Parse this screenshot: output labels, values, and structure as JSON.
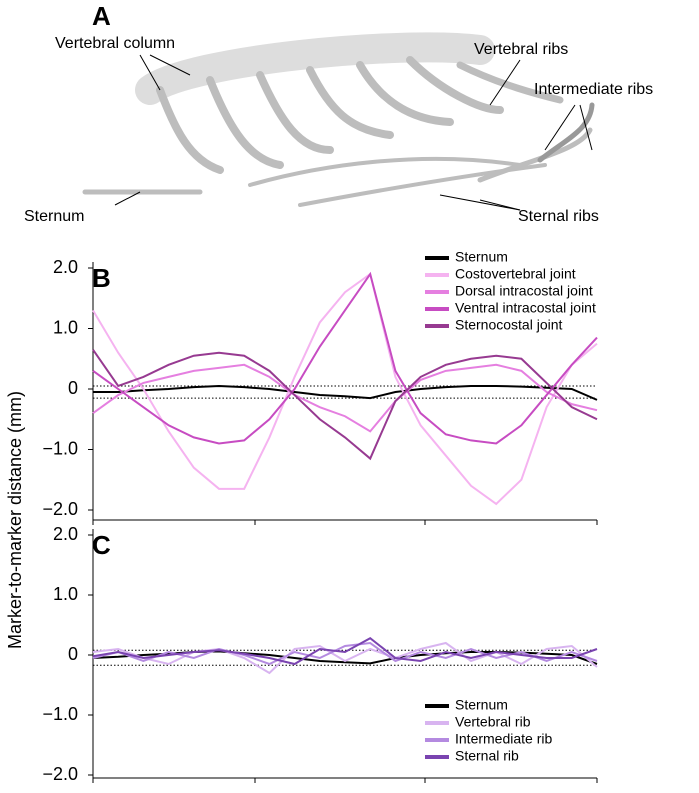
{
  "panel_a": {
    "label": "A",
    "annotations": [
      "Vertebral column",
      "Vertebral ribs",
      "Intermediate ribs",
      "Sternum",
      "Sternal ribs"
    ]
  },
  "chart_data": [
    {
      "type": "line",
      "label": "B",
      "ylabel": "Marker-to-marker distance (mm)",
      "ylim": [
        -2.0,
        2.0
      ],
      "yticks": [
        {
          "value": 2,
          "label": "2.0"
        },
        {
          "value": 1,
          "label": "1.0"
        },
        0,
        {
          "value": -1,
          "label": "−1.0"
        },
        {
          "value": -2,
          "label": "−2.0"
        }
      ],
      "reference_lines": [
        0.05,
        -0.15
      ],
      "legend": "upper right",
      "series": [
        {
          "name": "Sternum",
          "color": "#000000",
          "values": [
            -0.05,
            -0.05,
            -0.02,
            0,
            0.03,
            0.05,
            0.03,
            0,
            -0.05,
            -0.1,
            -0.12,
            -0.15,
            -0.05,
            0,
            0.03,
            0.05,
            0.05,
            0.04,
            0.02,
            0,
            -0.18
          ]
        },
        {
          "name": "Costovertebral joint",
          "color": "#f5b3f0",
          "values": [
            1.3,
            0.6,
            0,
            -0.7,
            -1.3,
            -1.65,
            -1.65,
            -0.8,
            0.2,
            1.1,
            1.6,
            1.9,
            0.2,
            -0.6,
            -1.1,
            -1.6,
            -1.9,
            -1.5,
            -0.3,
            0.4,
            0.75
          ]
        },
        {
          "name": "Dorsal intracostal joint",
          "color": "#e57fe0",
          "values": [
            -0.4,
            -0.1,
            0.1,
            0.2,
            0.3,
            0.35,
            0.4,
            0.2,
            -0.1,
            -0.3,
            -0.45,
            -0.7,
            -0.2,
            0.15,
            0.3,
            0.35,
            0.4,
            0.3,
            -0.05,
            -0.25,
            -0.35
          ]
        },
        {
          "name": "Ventral intracostal joint",
          "color": "#c74cc2",
          "values": [
            0.3,
            0,
            -0.3,
            -0.6,
            -0.8,
            -0.9,
            -0.85,
            -0.5,
            0,
            0.7,
            1.3,
            1.9,
            0.3,
            -0.4,
            -0.75,
            -0.85,
            -0.9,
            -0.6,
            -0.1,
            0.4,
            0.85
          ]
        },
        {
          "name": "Sternocostal joint",
          "color": "#973a91",
          "values": [
            0.65,
            0.05,
            0.2,
            0.4,
            0.55,
            0.6,
            0.55,
            0.3,
            -0.1,
            -0.5,
            -0.8,
            -1.15,
            -0.2,
            0.2,
            0.4,
            0.5,
            0.55,
            0.5,
            0.1,
            -0.3,
            -0.5
          ]
        }
      ]
    },
    {
      "type": "line",
      "label": "C",
      "ylim": [
        -2.0,
        2.0
      ],
      "yticks": [
        {
          "value": 2,
          "label": "2.0"
        },
        {
          "value": 1,
          "label": "1.0"
        },
        0,
        {
          "value": -1,
          "label": "−1.0"
        },
        {
          "value": -2,
          "label": "−2.0"
        }
      ],
      "reference_lines": [
        0.08,
        -0.17
      ],
      "legend": "lower right",
      "series": [
        {
          "name": "Sternum",
          "color": "#000000",
          "values": [
            -0.05,
            -0.03,
            0,
            0.02,
            0.05,
            0.06,
            0.03,
            0,
            -0.05,
            -0.1,
            -0.12,
            -0.14,
            -0.05,
            0,
            0.03,
            0.05,
            0.05,
            0.04,
            0.02,
            0,
            -0.15
          ]
        },
        {
          "name": "Vertebral rib",
          "color": "#d8b4f0",
          "values": [
            0.05,
            0.1,
            -0.05,
            -0.15,
            0.05,
            0.1,
            -0.05,
            -0.3,
            0.1,
            0.15,
            -0.1,
            0.1,
            -0.05,
            0.1,
            0.2,
            -0.1,
            0.05,
            -0.15,
            0.1,
            0.15,
            -0.2
          ]
        },
        {
          "name": "Intermediate rib",
          "color": "#b48ae0",
          "values": [
            -0.05,
            0.05,
            -0.1,
            0.05,
            -0.05,
            0.1,
            0,
            -0.15,
            0.05,
            -0.05,
            0.15,
            0.2,
            -0.1,
            0.05,
            -0.05,
            0.1,
            -0.05,
            0.05,
            -0.1,
            0.05,
            -0.1
          ]
        },
        {
          "name": "Sternal rib",
          "color": "#7a44b0",
          "values": [
            -0.02,
            0.05,
            -0.05,
            0,
            0.05,
            0.08,
            0.02,
            -0.05,
            -0.15,
            0.1,
            0.05,
            0.28,
            -0.05,
            -0.1,
            0.05,
            -0.05,
            0.05,
            0,
            -0.05,
            -0.05,
            0.1
          ]
        }
      ]
    }
  ]
}
